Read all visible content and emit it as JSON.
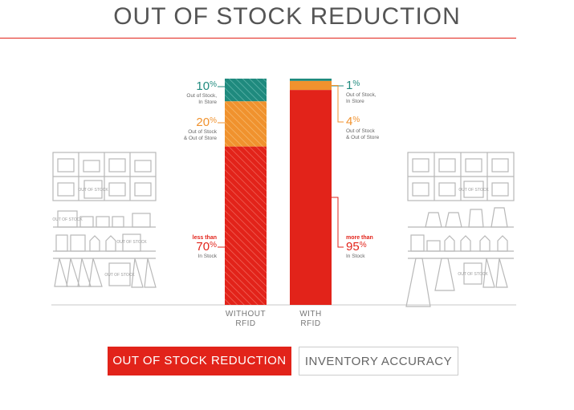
{
  "header": {
    "title": "OUT OF STOCK REDUCTION"
  },
  "colors": {
    "accent": "#e2231a",
    "teal": "#1f8a7e",
    "orange": "#f0922e",
    "red": "#e2231a",
    "line_art": "#b8b8b8"
  },
  "chart_data": {
    "type": "bar",
    "stacked": true,
    "categories": [
      "WITHOUT RFID",
      "WITH RFID"
    ],
    "category_lines": [
      [
        "WITHOUT",
        "RFID"
      ],
      [
        "WITH",
        "RFID"
      ]
    ],
    "series": [
      {
        "values": [
          70,
          95
        ],
        "color": "#e2231a"
      },
      {
        "values": [
          20,
          4
        ],
        "color": "#f0922e"
      },
      {
        "values": [
          10,
          1
        ],
        "color": "#1f8a7e"
      }
    ],
    "ylim": [
      0,
      100
    ],
    "annotations": {
      "left": [
        {
          "pre": "",
          "value": "10",
          "unit": "%",
          "lines": [
            "Out of Stock,",
            "In Store"
          ],
          "color": "#1f8a7e"
        },
        {
          "pre": "",
          "value": "20",
          "unit": "%",
          "lines": [
            "Out of Stock",
            "& Out of Store"
          ],
          "color": "#f0922e"
        },
        {
          "pre": "less than",
          "value": "70",
          "unit": "%",
          "lines": [
            "In Stock"
          ],
          "color": "#e2231a"
        }
      ],
      "right": [
        {
          "pre": "",
          "value": "1",
          "unit": "%",
          "lines": [
            "Out of Stock,",
            "In Store"
          ],
          "color": "#1f8a7e"
        },
        {
          "pre": "",
          "value": "4",
          "unit": "%",
          "lines": [
            "Out of Stock",
            "& Out of Store"
          ],
          "color": "#f0922e"
        },
        {
          "pre": "more than",
          "value": "95",
          "unit": "%",
          "lines": [
            "In Stock"
          ],
          "color": "#e2231a"
        }
      ]
    },
    "illustration_text": "OUT OF STOCK"
  },
  "tabs": [
    {
      "label": "OUT OF STOCK REDUCTION",
      "active": true
    },
    {
      "label": "INVENTORY ACCURACY",
      "active": false
    }
  ]
}
